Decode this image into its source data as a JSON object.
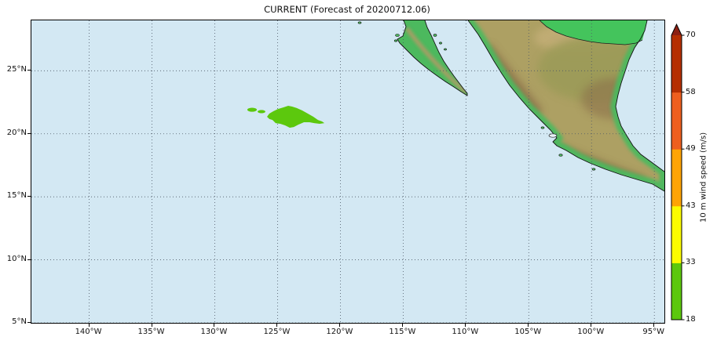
{
  "title": "CURRENT (Forecast of 20200712.06)",
  "colors": {
    "ocean": "#d3e8f3",
    "grid": "#4d5866",
    "swath_green": "#5cc80d",
    "coastline": "#111111"
  },
  "axes": {
    "lon_range": [
      -144.6,
      -94.2
    ],
    "lat_range": [
      5,
      29
    ],
    "lon_ticks": [
      {
        "label": "140°W",
        "value": -140
      },
      {
        "label": "135°W",
        "value": -135
      },
      {
        "label": "130°W",
        "value": -130
      },
      {
        "label": "125°W",
        "value": -125
      },
      {
        "label": "120°W",
        "value": -120
      },
      {
        "label": "115°W",
        "value": -115
      },
      {
        "label": "110°W",
        "value": -110
      },
      {
        "label": "105°W",
        "value": -105
      },
      {
        "label": "100°W",
        "value": -100
      },
      {
        "label": "95°W",
        "value": -95
      }
    ],
    "lat_ticks": [
      {
        "label": "25°N",
        "value": 25
      },
      {
        "label": "20°N",
        "value": 20
      },
      {
        "label": "15°N",
        "value": 15
      },
      {
        "label": "10°N",
        "value": 10
      },
      {
        "label": "5°N",
        "value": 5
      }
    ]
  },
  "colorbar": {
    "label": "10 m wind speed (m/s)",
    "tick_values": [
      18,
      33,
      43,
      49,
      58,
      70
    ],
    "segments": [
      {
        "from": 18,
        "to": 33,
        "color": "#5cc80d"
      },
      {
        "from": 33,
        "to": 43,
        "color": "#fcfc00"
      },
      {
        "from": 43,
        "to": 49,
        "color": "#ffa405"
      },
      {
        "from": 49,
        "to": 58,
        "color": "#ee5f1f"
      },
      {
        "from": 58,
        "to": 70,
        "color": "#b52f02"
      }
    ],
    "extend_above_color": "#8c2013"
  },
  "chart_data": {
    "type": "filled_contour_map",
    "title": "CURRENT (Forecast of 20200712.06)",
    "forecast_cycle": "20200712.06",
    "variable": "10 m wind speed (m/s)",
    "levels": [
      18,
      33,
      43,
      49,
      58,
      70
    ],
    "level_colors": [
      "#5cc80d",
      "#fcfc00",
      "#ffa405",
      "#ee5f1f",
      "#b52f02"
    ],
    "extent": {
      "lon_min": -144.6,
      "lon_max": -94.2,
      "lat_min": 5,
      "lat_max": 29
    },
    "grid": "dotted, every 5 degrees",
    "legend_position": "right colorbar",
    "wind_swath": {
      "threshold_ms": 18,
      "color": "#5cc80d",
      "polygon": [
        [
          -125.84,
          21.35
        ],
        [
          -125.66,
          21.6
        ],
        [
          -125.34,
          21.79
        ],
        [
          -124.97,
          21.97
        ],
        [
          -124.53,
          22.1
        ],
        [
          -124.15,
          22.22
        ],
        [
          -123.84,
          22.16
        ],
        [
          -123.47,
          22.04
        ],
        [
          -123.03,
          21.85
        ],
        [
          -122.59,
          21.6
        ],
        [
          -122.15,
          21.35
        ],
        [
          -121.78,
          21.1
        ],
        [
          -121.46,
          20.98
        ],
        [
          -121.27,
          20.85
        ],
        [
          -121.65,
          20.79
        ],
        [
          -122.09,
          20.85
        ],
        [
          -122.46,
          20.92
        ],
        [
          -122.9,
          20.92
        ],
        [
          -123.34,
          20.73
        ],
        [
          -123.71,
          20.54
        ],
        [
          -124.03,
          20.48
        ],
        [
          -124.4,
          20.67
        ],
        [
          -124.78,
          20.79
        ],
        [
          -125.15,
          20.85
        ],
        [
          -125.4,
          21.1
        ],
        [
          -125.65,
          21.17
        ]
      ],
      "spots": [
        {
          "lon": -127.03,
          "lat": 21.91,
          "rx_deg": 0.38,
          "ry_deg": 0.16
        },
        {
          "lon": -126.28,
          "lat": 21.76,
          "rx_deg": 0.31,
          "ry_deg": 0.13
        }
      ]
    }
  }
}
